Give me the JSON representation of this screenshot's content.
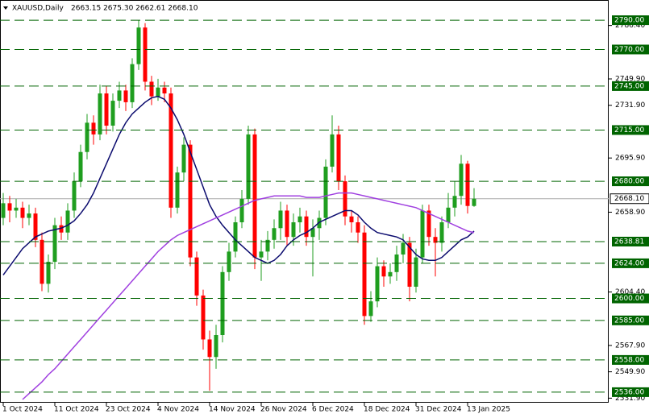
{
  "chart_data": {
    "type": "candlestick",
    "title": "XAUUSD,Daily",
    "ohlc_text": "2663.15 2675.30 2662.61 2668.10",
    "categories": [
      "1 Oct 2024",
      null,
      null,
      null,
      null,
      null,
      null,
      null,
      "11 Oct 2024",
      null,
      null,
      null,
      null,
      null,
      null,
      null,
      "23 Oct 2024",
      null,
      null,
      null,
      null,
      null,
      null,
      null,
      "4 Nov 2024",
      null,
      null,
      null,
      null,
      null,
      null,
      null,
      "14 Nov 2024",
      null,
      null,
      null,
      null,
      null,
      null,
      null,
      "26 Nov 2024",
      null,
      null,
      null,
      null,
      null,
      null,
      null,
      "6 Dec 2024",
      null,
      null,
      null,
      null,
      null,
      null,
      null,
      "18 Dec 2024",
      null,
      null,
      null,
      null,
      null,
      null,
      null,
      "31 Dec 2024",
      null,
      null,
      null,
      null,
      null,
      null,
      null,
      "13 Jan 2025",
      null
    ],
    "open": [
      2655,
      2665,
      2660,
      2662,
      2655,
      2658,
      2640,
      2610,
      2625,
      2650,
      2645,
      2660,
      2680,
      2700,
      2720,
      2712,
      2740,
      2718,
      2735,
      2742,
      2734,
      2760,
      2785,
      2748,
      2738,
      2744,
      2740,
      2662,
      2686,
      2705,
      2628,
      2602,
      2572,
      2560,
      2575,
      2618,
      2632,
      2652,
      2668,
      2712,
      2628,
      2632,
      2640,
      2648,
      2660,
      2642,
      2652,
      2656,
      2642,
      2648,
      2655,
      2690,
      2712,
      2680,
      2656,
      2652,
      2645,
      2588,
      2598,
      2622,
      2615,
      2618,
      2630,
      2638,
      2608,
      2628,
      2660,
      2642,
      2638,
      2652,
      2662,
      2670,
      2692,
      2663.15
    ],
    "high": [
      2672,
      2670,
      2668,
      2666,
      2664,
      2662,
      2645,
      2630,
      2655,
      2656,
      2665,
      2686,
      2705,
      2726,
      2725,
      2746,
      2745,
      2740,
      2748,
      2746,
      2764,
      2790,
      2788,
      2752,
      2750,
      2748,
      2744,
      2690,
      2710,
      2708,
      2632,
      2606,
      2578,
      2582,
      2622,
      2638,
      2656,
      2674,
      2718,
      2716,
      2640,
      2646,
      2654,
      2666,
      2664,
      2658,
      2662,
      2660,
      2654,
      2660,
      2695,
      2725,
      2718,
      2684,
      2660,
      2656,
      2650,
      2605,
      2628,
      2626,
      2624,
      2636,
      2644,
      2642,
      2634,
      2664,
      2664,
      2648,
      2656,
      2672,
      2680,
      2698,
      2694,
      2675.3
    ],
    "low": [
      2650,
      2652,
      2655,
      2648,
      2650,
      2635,
      2605,
      2604,
      2620,
      2640,
      2640,
      2655,
      2676,
      2695,
      2705,
      2708,
      2712,
      2714,
      2730,
      2728,
      2730,
      2756,
      2742,
      2732,
      2735,
      2734,
      2655,
      2658,
      2680,
      2622,
      2595,
      2565,
      2537,
      2552,
      2570,
      2612,
      2628,
      2648,
      2664,
      2620,
      2612,
      2626,
      2634,
      2640,
      2636,
      2636,
      2645,
      2636,
      2615,
      2640,
      2650,
      2686,
      2674,
      2650,
      2645,
      2638,
      2582,
      2584,
      2594,
      2608,
      2610,
      2612,
      2624,
      2598,
      2604,
      2624,
      2636,
      2615,
      2632,
      2648,
      2656,
      2664,
      2658,
      2662.61
    ],
    "close": [
      2665,
      2660,
      2662,
      2655,
      2658,
      2640,
      2610,
      2625,
      2650,
      2645,
      2660,
      2680,
      2700,
      2720,
      2712,
      2740,
      2718,
      2735,
      2742,
      2734,
      2760,
      2785,
      2748,
      2738,
      2744,
      2740,
      2662,
      2686,
      2705,
      2628,
      2602,
      2572,
      2560,
      2575,
      2618,
      2632,
      2652,
      2668,
      2712,
      2628,
      2632,
      2640,
      2648,
      2660,
      2642,
      2652,
      2656,
      2642,
      2648,
      2655,
      2690,
      2712,
      2680,
      2656,
      2652,
      2645,
      2588,
      2598,
      2622,
      2615,
      2618,
      2630,
      2638,
      2608,
      2628,
      2660,
      2642,
      2638,
      2652,
      2662,
      2670,
      2692,
      2663.15,
      2668.1
    ],
    "up_color": "#1f9e1f",
    "down_color": "#ff0000",
    "lines": [
      {
        "color": "#0b0b6e",
        "values": [
          2616,
          2622,
          2628,
          2634,
          2638,
          2642,
          2644,
          2646,
          2647,
          2648,
          2650,
          2653,
          2658,
          2664,
          2672,
          2682,
          2692,
          2702,
          2712,
          2720,
          2726,
          2730,
          2734,
          2737,
          2738,
          2736,
          2730,
          2722,
          2712,
          2700,
          2688,
          2676,
          2664,
          2656,
          2650,
          2645,
          2640,
          2636,
          2632,
          2628,
          2626,
          2624,
          2626,
          2630,
          2636,
          2640,
          2643,
          2645,
          2648,
          2652,
          2654,
          2656,
          2658,
          2660,
          2660,
          2657,
          2652,
          2648,
          2645,
          2644,
          2643,
          2642,
          2640,
          2635,
          2630,
          2627,
          2626,
          2626,
          2628,
          2632,
          2636,
          2640,
          2642,
          2646
        ]
      },
      {
        "color": "#a040e0",
        "values": [
          null,
          null,
          null,
          2531,
          2535,
          2539,
          2543,
          2548,
          2552,
          2557,
          2562,
          2567,
          2572,
          2577,
          2582,
          2587,
          2592,
          2597,
          2602,
          2607,
          2612,
          2617,
          2622,
          2627,
          2632,
          2636,
          2640,
          2643,
          2645,
          2647,
          2649,
          2651,
          2653,
          2655,
          2657,
          2659,
          2661,
          2663,
          2665,
          2667,
          2668,
          2669,
          2670,
          2670,
          2670,
          2670,
          2670,
          2669,
          2669,
          2669,
          2670,
          2671,
          2672,
          2672,
          2672,
          2671,
          2670,
          2669,
          2668,
          2667,
          2666,
          2665,
          2664,
          2663,
          2662,
          2660,
          2658,
          2656,
          2654,
          2652,
          2650,
          2648,
          2646,
          2645
        ]
      }
    ],
    "ylim": [
      2528.8,
      2803.8
    ],
    "yticks": [
      {
        "value": 2786.4,
        "label": "2786.40"
      },
      {
        "value": 2749.9,
        "label": "2749.90"
      },
      {
        "value": 2731.9,
        "label": "2731.90"
      },
      {
        "value": 2695.9,
        "label": "2695.90"
      },
      {
        "value": 2658.9,
        "label": "2658.90"
      },
      {
        "value": 2604.4,
        "label": "2604.40"
      },
      {
        "value": 2567.9,
        "label": "2567.90"
      },
      {
        "value": 2549.9,
        "label": "2549.90"
      },
      {
        "value": 2531.9,
        "label": "2531.90"
      }
    ],
    "levels": [
      {
        "value": 2790,
        "label": "2790.00"
      },
      {
        "value": 2770,
        "label": "2770.00"
      },
      {
        "value": 2745,
        "label": "2745.00"
      },
      {
        "value": 2715,
        "label": "2715.00"
      },
      {
        "value": 2680,
        "label": "2680.00"
      },
      {
        "value": 2638.81,
        "label": "2638.81"
      },
      {
        "value": 2624,
        "label": "2624.00"
      },
      {
        "value": 2600,
        "label": "2600.00"
      },
      {
        "value": 2585,
        "label": "2585.00"
      },
      {
        "value": 2558,
        "label": "2558.00"
      },
      {
        "value": 2536,
        "label": "2536.00"
      }
    ],
    "level_color": "#006400",
    "last_price": {
      "value": 2668.1,
      "label": "2668.10"
    }
  }
}
